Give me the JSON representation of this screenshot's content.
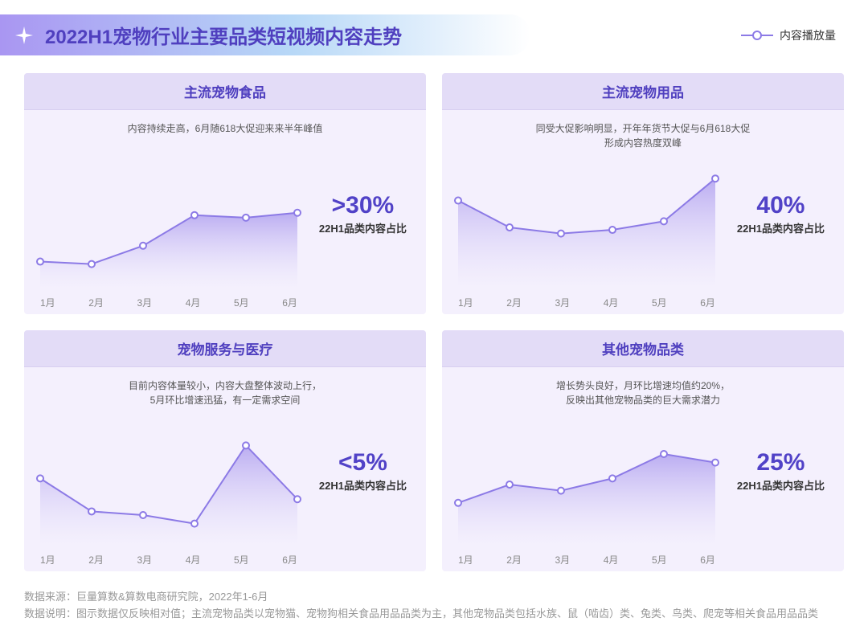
{
  "header": {
    "title": "2022H1宠物行业主要品类短视频内容走势",
    "legend_label": "内容播放量"
  },
  "colors": {
    "accent": "#5142c7",
    "line": "#8c7ae6",
    "area_top": "#b4a5f0",
    "area_bottom": "#f4f0fd",
    "card_bg": "#f4f0fd",
    "card_header_bg": "#e3dcf7",
    "gradient_start": "#a996f2",
    "gradient_end": "#b7d8f7"
  },
  "x_labels": [
    "1月",
    "2月",
    "3月",
    "4月",
    "5月",
    "6月"
  ],
  "charts": [
    {
      "title": "主流宠物食品",
      "subtitle": "内容持续走高，6月随618大促迎来来半年峰值",
      "values": [
        22,
        20,
        35,
        60,
        58,
        62
      ],
      "metric_value": ">30%",
      "metric_label": "22H1品类内容占比"
    },
    {
      "title": "主流宠物用品",
      "subtitle": "同受大促影响明显，开年年货节大促与6月618大促\n形成内容热度双峰",
      "values": [
        72,
        50,
        45,
        48,
        55,
        90
      ],
      "metric_value": "40%",
      "metric_label": "22H1品类内容占比"
    },
    {
      "title": "宠物服务与医疗",
      "subtitle": "目前内容体量较小，内容大盘整体波动上行，\n5月环比增速迅猛，有一定需求空间",
      "values": [
        55,
        28,
        25,
        18,
        82,
        38
      ],
      "metric_value": "<5%",
      "metric_label": "22H1品类内容占比"
    },
    {
      "title": "其他宠物品类",
      "subtitle": "增长势头良好，月环比增速均值约20%，\n反映出其他宠物品类的巨大需求潜力",
      "values": [
        35,
        50,
        45,
        55,
        75,
        68
      ],
      "metric_value": "25%",
      "metric_label": "22H1品类内容占比"
    }
  ],
  "chart_style": {
    "type": "area-line",
    "ylim": [
      0,
      100
    ],
    "marker_radius": 4,
    "marker_fill": "#ffffff",
    "marker_stroke": "#8c7ae6",
    "marker_stroke_width": 2,
    "line_width": 2,
    "line_color": "#8c7ae6"
  },
  "footer": {
    "line1": "数据来源：巨量算数&算数电商研究院，2022年1-6月",
    "line2": "数据说明：图示数据仅反映相对值；主流宠物品类以宠物猫、宠物狗相关食品用品品类为主，其他宠物品类包括水族、鼠（啮齿）类、兔类、鸟类、爬宠等相关食品用品品类"
  }
}
